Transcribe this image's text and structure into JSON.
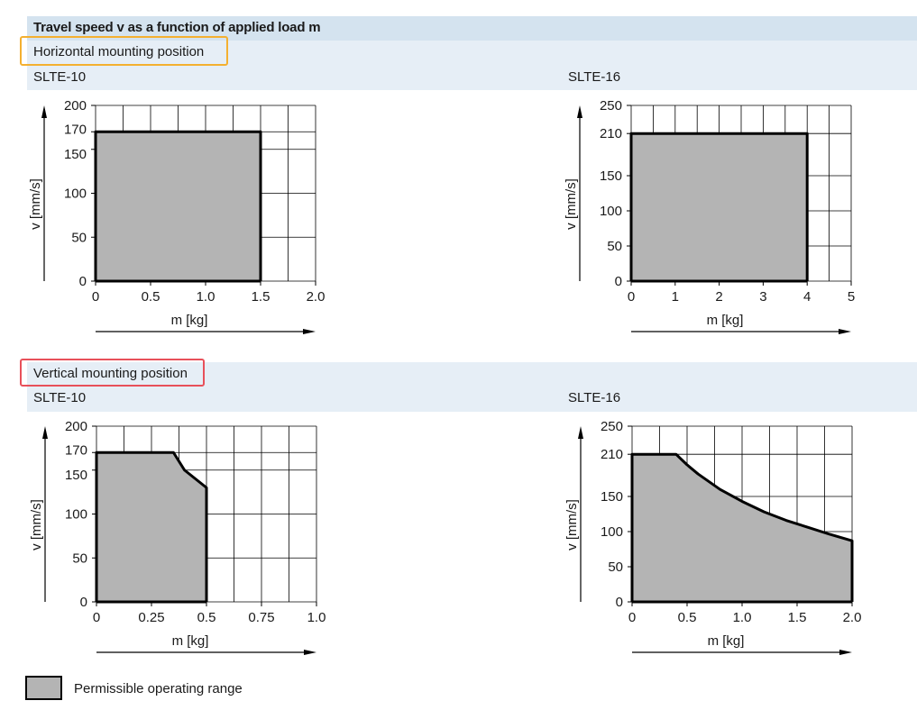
{
  "header": {
    "title": "Travel speed v as a function of applied load m"
  },
  "sections": {
    "horizontal": {
      "label": "Horizontal mounting position"
    },
    "vertical": {
      "label": "Vertical mounting position"
    }
  },
  "legend": {
    "label": "Permissible operating range"
  },
  "colors": {
    "fill": "#b4b4b4",
    "grid": "#000000",
    "highlight_orange": "#f4b030",
    "highlight_red": "#e8505a",
    "band": "#e6eef6"
  },
  "chart_data": [
    {
      "type": "area",
      "title": "SLTE-10",
      "section": "horizontal",
      "xlabel": "m [kg]",
      "ylabel": "v [mm/s]",
      "xlim": [
        0,
        2.0
      ],
      "ylim": [
        0,
        200
      ],
      "x_ticks": [
        0,
        0.5,
        1.0,
        1.5,
        2.0
      ],
      "x_tick_labels": [
        "0",
        "0.5",
        "1.0",
        "1.5",
        "2.0"
      ],
      "y_ticks": [
        0,
        50,
        100,
        150,
        170,
        200
      ],
      "y_tick_labels": [
        "0",
        "50",
        "100",
        "150",
        "170",
        "200"
      ],
      "grid": true,
      "series": [
        {
          "x": [
            0,
            0,
            1.5,
            1.5
          ],
          "y": [
            0,
            170,
            170,
            0
          ]
        }
      ]
    },
    {
      "type": "area",
      "title": "SLTE-16",
      "section": "horizontal",
      "xlabel": "m [kg]",
      "ylabel": "v [mm/s]",
      "xlim": [
        0,
        5
      ],
      "ylim": [
        0,
        250
      ],
      "x_ticks": [
        0,
        1,
        2,
        3,
        4,
        5
      ],
      "x_tick_labels": [
        "0",
        "1",
        "2",
        "3",
        "4",
        "5"
      ],
      "y_ticks": [
        0,
        50,
        100,
        150,
        210,
        250
      ],
      "y_tick_labels": [
        "0",
        "50",
        "100",
        "150",
        "210",
        "250"
      ],
      "grid": true,
      "series": [
        {
          "x": [
            0,
            0,
            4,
            4
          ],
          "y": [
            0,
            210,
            210,
            0
          ]
        }
      ]
    },
    {
      "type": "area",
      "title": "SLTE-10",
      "section": "vertical",
      "xlabel": "m [kg]",
      "ylabel": "v [mm/s]",
      "xlim": [
        0,
        1.0
      ],
      "ylim": [
        0,
        200
      ],
      "x_ticks": [
        0,
        0.25,
        0.5,
        0.75,
        1.0
      ],
      "x_tick_labels": [
        "0",
        "0.25",
        "0.5",
        "0.75",
        "1.0"
      ],
      "y_ticks": [
        0,
        50,
        100,
        150,
        170,
        200
      ],
      "y_tick_labels": [
        "0",
        "50",
        "100",
        "150",
        "170",
        "200"
      ],
      "grid": true,
      "series": [
        {
          "x": [
            0,
            0,
            0.35,
            0.4,
            0.45,
            0.5,
            0.5
          ],
          "y": [
            0,
            170,
            170,
            150,
            140,
            130,
            0
          ]
        }
      ]
    },
    {
      "type": "area",
      "title": "SLTE-16",
      "section": "vertical",
      "xlabel": "m [kg]",
      "ylabel": "v [mm/s]",
      "xlim": [
        0,
        2.0
      ],
      "ylim": [
        0,
        250
      ],
      "x_ticks": [
        0,
        0.5,
        1.0,
        1.5,
        2.0
      ],
      "x_tick_labels": [
        "0",
        "0.5",
        "1.0",
        "1.5",
        "2.0"
      ],
      "y_ticks": [
        0,
        50,
        100,
        150,
        210,
        250
      ],
      "y_tick_labels": [
        "0",
        "50",
        "100",
        "150",
        "210",
        "250"
      ],
      "grid": true,
      "series": [
        {
          "x": [
            0,
            0,
            0.4,
            0.5,
            0.6,
            0.8,
            1.0,
            1.2,
            1.4,
            1.6,
            1.8,
            2.0,
            2.0
          ],
          "y": [
            0,
            210,
            210,
            195,
            182,
            160,
            143,
            128,
            116,
            106,
            96,
            87,
            0
          ]
        }
      ]
    }
  ]
}
